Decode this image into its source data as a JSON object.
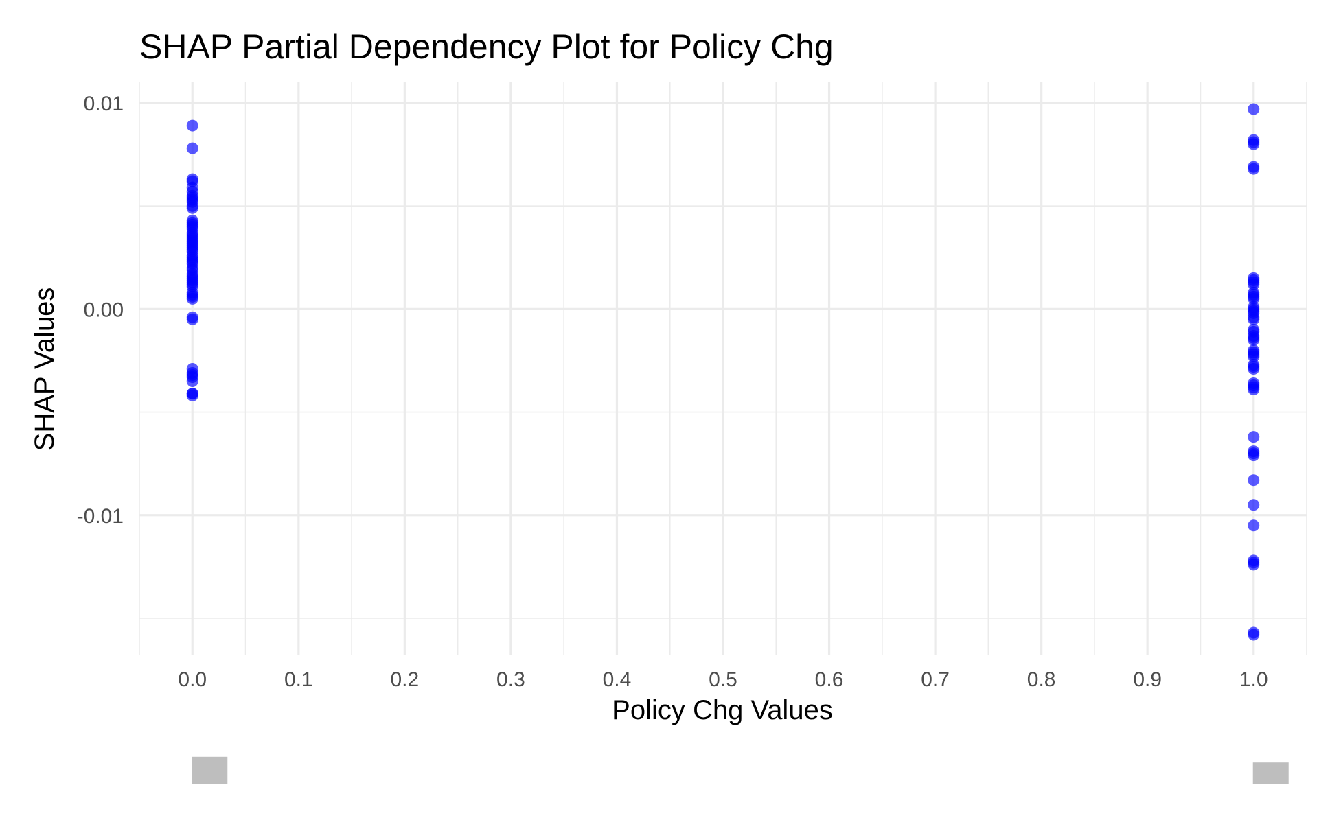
{
  "chart_data": {
    "type": "scatter",
    "title": "SHAP Partial Dependency Plot for Policy Chg",
    "xlabel": "Policy Chg Values",
    "ylabel": "SHAP Values",
    "xlim": [
      -0.05,
      1.05
    ],
    "ylim": [
      -0.0168,
      0.011
    ],
    "x_ticks": [
      "0.0",
      "0.1",
      "0.2",
      "0.3",
      "0.4",
      "0.5",
      "0.6",
      "0.7",
      "0.8",
      "0.9",
      "1.0"
    ],
    "y_ticks": [
      "0.01",
      "0.00",
      "-0.01"
    ],
    "grid": true,
    "point_color": "#0000FF",
    "marginal_density_color": "#BEBEBE",
    "series": [
      {
        "x": [
          0,
          0,
          0,
          0,
          0,
          0,
          0,
          0,
          0,
          0,
          0,
          0,
          0,
          0,
          0,
          0,
          0,
          0,
          0,
          0,
          0,
          0,
          0,
          0,
          0,
          0,
          0,
          0,
          0,
          0,
          0,
          0,
          0,
          0,
          0,
          0,
          0,
          0,
          0,
          0,
          0,
          0,
          0,
          0,
          0,
          0,
          0,
          0,
          0,
          0,
          0,
          0,
          0,
          0,
          0
        ],
        "y": [
          0.0089,
          0.0078,
          0.0063,
          0.0062,
          0.0059,
          0.0057,
          0.0055,
          0.0054,
          0.0053,
          0.0052,
          0.005,
          0.0049,
          0.0043,
          0.0042,
          0.0041,
          0.004,
          0.0039,
          0.0037,
          0.0036,
          0.0035,
          0.0034,
          0.0033,
          0.0032,
          0.0031,
          0.003,
          0.0029,
          0.0028,
          0.0026,
          0.0025,
          0.0024,
          0.0023,
          0.0022,
          0.002,
          0.0019,
          0.0017,
          0.0016,
          0.0015,
          0.0014,
          0.0013,
          0.0012,
          0.0011,
          0.0008,
          0.0007,
          0.0006,
          0.0005,
          -0.0004,
          -0.0005,
          -0.0029,
          -0.0031,
          -0.0032,
          -0.0033,
          -0.0035,
          -0.0041,
          -0.0042,
          -0.0041
        ]
      },
      {
        "x": [
          1,
          1,
          1,
          1,
          1,
          1,
          1,
          1,
          1,
          1,
          1,
          1,
          1,
          1,
          1,
          1,
          1,
          1,
          1,
          1,
          1,
          1,
          1,
          1,
          1,
          1,
          1,
          1,
          1,
          1,
          1,
          1,
          1,
          1,
          1,
          1,
          1,
          1,
          1,
          1,
          1,
          1,
          1,
          1,
          1,
          1,
          1,
          1
        ],
        "y": [
          0.0097,
          0.0082,
          0.0081,
          0.008,
          0.0069,
          0.0068,
          0.0015,
          0.0014,
          0.0013,
          0.0012,
          0.0008,
          0.0007,
          0.0006,
          0.0005,
          0.0001,
          0.0,
          -0.0001,
          -0.0002,
          -0.0004,
          -0.0005,
          -0.001,
          -0.0011,
          -0.0013,
          -0.0014,
          -0.0015,
          -0.002,
          -0.0021,
          -0.0022,
          -0.0023,
          -0.0027,
          -0.0028,
          -0.0029,
          -0.0036,
          -0.0037,
          -0.0038,
          -0.0039,
          -0.0062,
          -0.0069,
          -0.007,
          -0.0071,
          -0.0083,
          -0.0095,
          -0.0105,
          -0.0122,
          -0.0123,
          -0.0124,
          -0.0157,
          -0.0158
        ]
      }
    ],
    "marginal_density_value": [
      0.56,
      0.44
    ]
  }
}
